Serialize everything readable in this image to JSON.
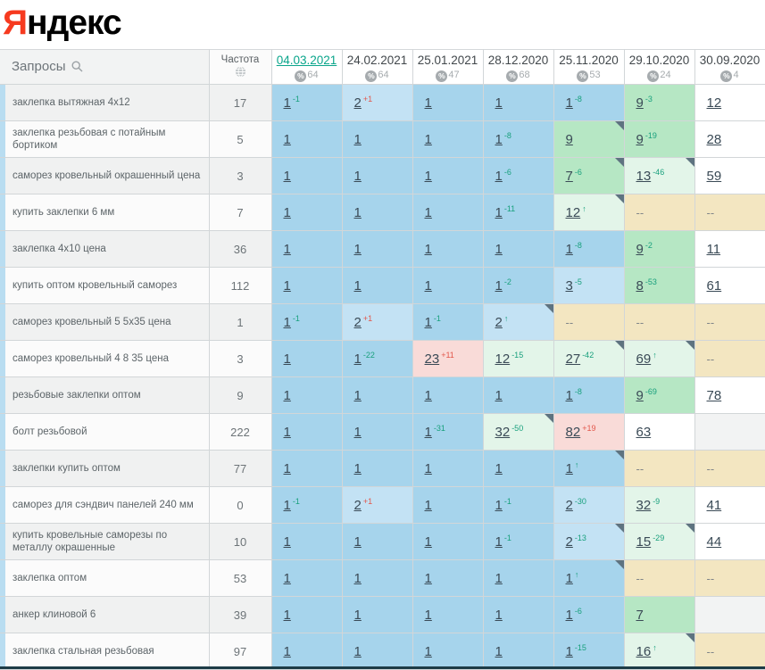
{
  "logo": {
    "first_letter": "Я",
    "rest": "ндекс"
  },
  "table": {
    "queries_header": "Запросы",
    "frequency_header": "Частота",
    "dates": [
      {
        "label": "04.03.2021",
        "percent": "64",
        "selected": true
      },
      {
        "label": "24.02.2021",
        "percent": "64",
        "selected": false
      },
      {
        "label": "25.01.2021",
        "percent": "47",
        "selected": false
      },
      {
        "label": "28.12.2020",
        "percent": "68",
        "selected": false
      },
      {
        "label": "25.11.2020",
        "percent": "53",
        "selected": false
      },
      {
        "label": "29.10.2020",
        "percent": "24",
        "selected": false
      },
      {
        "label": "30.09.2020",
        "percent": "4",
        "selected": false
      }
    ],
    "rows": [
      {
        "query": "заклепка вытяжная 4x12",
        "frequency": "17",
        "cells": [
          {
            "v": "1",
            "d": "-1",
            "bg": "b1"
          },
          {
            "v": "2",
            "d": "+1",
            "bg": "b2"
          },
          {
            "v": "1",
            "bg": "b1"
          },
          {
            "v": "1",
            "bg": "b1"
          },
          {
            "v": "1",
            "d": "-8",
            "bg": "b1"
          },
          {
            "v": "9",
            "d": "-3",
            "bg": "g1"
          },
          {
            "v": "12",
            "bg": "white"
          }
        ]
      },
      {
        "query": "заклепка резьбовая с потайным бортиком",
        "frequency": "5",
        "cells": [
          {
            "v": "1",
            "bg": "b1"
          },
          {
            "v": "1",
            "bg": "b1"
          },
          {
            "v": "1",
            "bg": "b1"
          },
          {
            "v": "1",
            "d": "-8",
            "bg": "b1"
          },
          {
            "v": "9",
            "bg": "g1",
            "corner": true
          },
          {
            "v": "9",
            "d": "-19",
            "bg": "g1"
          },
          {
            "v": "28",
            "bg": "white"
          }
        ]
      },
      {
        "query": "саморез кровельный окрашенный цена",
        "frequency": "3",
        "cells": [
          {
            "v": "1",
            "bg": "b1"
          },
          {
            "v": "1",
            "bg": "b1"
          },
          {
            "v": "1",
            "bg": "b1"
          },
          {
            "v": "1",
            "d": "-6",
            "bg": "b1"
          },
          {
            "v": "7",
            "d": "-6",
            "bg": "g1",
            "corner": true
          },
          {
            "v": "13",
            "d": "-46",
            "bg": "g2",
            "corner": true
          },
          {
            "v": "59",
            "bg": "white"
          }
        ]
      },
      {
        "query": "купить заклепки 6 мм",
        "frequency": "7",
        "cells": [
          {
            "v": "1",
            "bg": "b1"
          },
          {
            "v": "1",
            "bg": "b1"
          },
          {
            "v": "1",
            "bg": "b1"
          },
          {
            "v": "1",
            "d": "-11",
            "bg": "b1"
          },
          {
            "v": "12",
            "d": "↑",
            "bg": "g2",
            "corner": true
          },
          {
            "v": "--",
            "bg": "beige"
          },
          {
            "v": "--",
            "bg": "beige"
          }
        ]
      },
      {
        "query": "заклепка 4x10 цена",
        "frequency": "36",
        "cells": [
          {
            "v": "1",
            "bg": "b1"
          },
          {
            "v": "1",
            "bg": "b1"
          },
          {
            "v": "1",
            "bg": "b1"
          },
          {
            "v": "1",
            "bg": "b1"
          },
          {
            "v": "1",
            "d": "-8",
            "bg": "b1"
          },
          {
            "v": "9",
            "d": "-2",
            "bg": "g1"
          },
          {
            "v": "11",
            "bg": "white"
          }
        ]
      },
      {
        "query": "купить оптом кровельный саморез",
        "frequency": "112",
        "cells": [
          {
            "v": "1",
            "bg": "b1"
          },
          {
            "v": "1",
            "bg": "b1"
          },
          {
            "v": "1",
            "bg": "b1"
          },
          {
            "v": "1",
            "d": "-2",
            "bg": "b1"
          },
          {
            "v": "3",
            "d": "-5",
            "bg": "b2"
          },
          {
            "v": "8",
            "d": "-53",
            "bg": "g1"
          },
          {
            "v": "61",
            "bg": "white"
          }
        ]
      },
      {
        "query": "саморез кровельный 5 5x35 цена",
        "frequency": "1",
        "cells": [
          {
            "v": "1",
            "d": "-1",
            "bg": "b1"
          },
          {
            "v": "2",
            "d": "+1",
            "bg": "b2"
          },
          {
            "v": "1",
            "d": "-1",
            "bg": "b1"
          },
          {
            "v": "2",
            "d": "↑",
            "bg": "b2",
            "corner": true
          },
          {
            "v": "--",
            "bg": "beige"
          },
          {
            "v": "--",
            "bg": "beige"
          },
          {
            "v": "--",
            "bg": "beige"
          }
        ]
      },
      {
        "query": "саморез кровельный 4 8 35 цена",
        "frequency": "3",
        "cells": [
          {
            "v": "1",
            "bg": "b1"
          },
          {
            "v": "1",
            "d": "-22",
            "bg": "b1"
          },
          {
            "v": "23",
            "d": "+11",
            "bg": "pink"
          },
          {
            "v": "12",
            "d": "-15",
            "bg": "g2"
          },
          {
            "v": "27",
            "d": "-42",
            "bg": "g2",
            "corner": true
          },
          {
            "v": "69",
            "d": "↑",
            "bg": "g2",
            "corner": true
          },
          {
            "v": "--",
            "bg": "beige"
          }
        ]
      },
      {
        "query": "резьбовые заклепки оптом",
        "frequency": "9",
        "cells": [
          {
            "v": "1",
            "bg": "b1"
          },
          {
            "v": "1",
            "bg": "b1"
          },
          {
            "v": "1",
            "bg": "b1"
          },
          {
            "v": "1",
            "bg": "b1"
          },
          {
            "v": "1",
            "d": "-8",
            "bg": "b1"
          },
          {
            "v": "9",
            "d": "-69",
            "bg": "g1"
          },
          {
            "v": "78",
            "bg": "white"
          }
        ]
      },
      {
        "query": "болт резьбовой",
        "frequency": "222",
        "cells": [
          {
            "v": "1",
            "bg": "b1"
          },
          {
            "v": "1",
            "bg": "b1"
          },
          {
            "v": "1",
            "d": "-31",
            "bg": "b1"
          },
          {
            "v": "32",
            "d": "-50",
            "bg": "g2",
            "corner": true
          },
          {
            "v": "82",
            "d": "+19",
            "bg": "pink"
          },
          {
            "v": "63",
            "bg": "white"
          },
          {
            "v": "",
            "bg": "empty"
          }
        ]
      },
      {
        "query": "заклепки купить оптом",
        "frequency": "77",
        "cells": [
          {
            "v": "1",
            "bg": "b1"
          },
          {
            "v": "1",
            "bg": "b1"
          },
          {
            "v": "1",
            "bg": "b1"
          },
          {
            "v": "1",
            "bg": "b1"
          },
          {
            "v": "1",
            "d": "↑",
            "bg": "b1",
            "corner": true
          },
          {
            "v": "--",
            "bg": "beige"
          },
          {
            "v": "--",
            "bg": "beige"
          }
        ]
      },
      {
        "query": "саморез для сэндвич панелей 240 мм",
        "frequency": "0",
        "cells": [
          {
            "v": "1",
            "d": "-1",
            "bg": "b1"
          },
          {
            "v": "2",
            "d": "+1",
            "bg": "b2"
          },
          {
            "v": "1",
            "bg": "b1"
          },
          {
            "v": "1",
            "d": "-1",
            "bg": "b1"
          },
          {
            "v": "2",
            "d": "-30",
            "bg": "b2"
          },
          {
            "v": "32",
            "d": "-9",
            "bg": "g2"
          },
          {
            "v": "41",
            "bg": "white"
          }
        ]
      },
      {
        "query": "купить кровельные саморезы по металлу окрашенные",
        "frequency": "10",
        "cells": [
          {
            "v": "1",
            "bg": "b1"
          },
          {
            "v": "1",
            "bg": "b1"
          },
          {
            "v": "1",
            "bg": "b1"
          },
          {
            "v": "1",
            "d": "-1",
            "bg": "b1"
          },
          {
            "v": "2",
            "d": "-13",
            "bg": "b2",
            "corner": true
          },
          {
            "v": "15",
            "d": "-29",
            "bg": "g2",
            "corner": true
          },
          {
            "v": "44",
            "bg": "white"
          }
        ]
      },
      {
        "query": "заклепка оптом",
        "frequency": "53",
        "cells": [
          {
            "v": "1",
            "bg": "b1"
          },
          {
            "v": "1",
            "bg": "b1"
          },
          {
            "v": "1",
            "bg": "b1"
          },
          {
            "v": "1",
            "bg": "b1"
          },
          {
            "v": "1",
            "d": "↑",
            "bg": "b1",
            "corner": true
          },
          {
            "v": "--",
            "bg": "beige"
          },
          {
            "v": "--",
            "bg": "beige"
          }
        ]
      },
      {
        "query": "анкер клиновой 6",
        "frequency": "39",
        "cells": [
          {
            "v": "1",
            "bg": "b1"
          },
          {
            "v": "1",
            "bg": "b1"
          },
          {
            "v": "1",
            "bg": "b1"
          },
          {
            "v": "1",
            "bg": "b1"
          },
          {
            "v": "1",
            "d": "-6",
            "bg": "b1"
          },
          {
            "v": "7",
            "bg": "g1"
          },
          {
            "v": "",
            "bg": "empty"
          }
        ]
      },
      {
        "query": "заклепка стальная резьбовая",
        "frequency": "97",
        "cells": [
          {
            "v": "1",
            "bg": "b1"
          },
          {
            "v": "1",
            "bg": "b1"
          },
          {
            "v": "1",
            "bg": "b1"
          },
          {
            "v": "1",
            "bg": "b1"
          },
          {
            "v": "1",
            "d": "-15",
            "bg": "b1"
          },
          {
            "v": "16",
            "d": "↑",
            "bg": "g2",
            "corner": true
          },
          {
            "v": "--",
            "bg": "beige"
          }
        ]
      }
    ]
  },
  "icons": {
    "search_icon": "magnifier",
    "globe_icon": "globe",
    "percent_icon": "%",
    "note_corner_icon": "corner-triangle"
  },
  "colors": {
    "logo_accent": "#f63a1f",
    "selected_date": "#0aa58b",
    "delta_improve": "#19a07d",
    "delta_decline": "#e2574b",
    "rank_top1": "#a6d4ec",
    "rank_top3": "#c3e2f4",
    "rank_top10": "#b6e7c4",
    "rank_top30": "#e3f5e9",
    "rank_drop": "#f9dbd8",
    "not_found": "#f3e6c1",
    "table_bottom_edge": "#1d3b46"
  }
}
